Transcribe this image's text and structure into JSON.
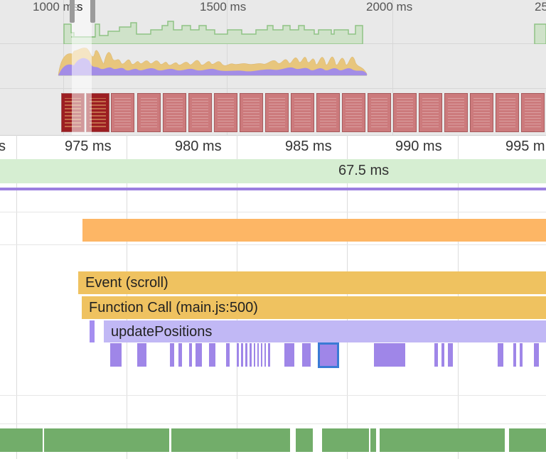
{
  "overview": {
    "time_labels": [
      "1000 ms",
      "1500 ms",
      "2000 ms",
      "25"
    ],
    "selection_handle_glyph": "s"
  },
  "ruler": {
    "tick_labels": [
      "s",
      "975 ms",
      "980 ms",
      "985 ms",
      "990 ms",
      "995 m"
    ]
  },
  "frames": {
    "duration_label": "67.5 ms"
  },
  "flame": {
    "event_label": "Event (scroll)",
    "function_label": "Function Call (main.js:500)",
    "update_label": "updatePositions"
  },
  "colors": {
    "overview_bg": "#e9e9e9",
    "frames_green": "#d6eed2",
    "main_thread_purple": "#9b7fe0",
    "scripting_yellow": "#efc260",
    "orange_task": "#fdb665",
    "rendering_purple": "#c1b8f5",
    "selection_border": "#3a7bd5",
    "painting_green": "#72ad6a",
    "screenshot_red": "#cc7a7c"
  }
}
